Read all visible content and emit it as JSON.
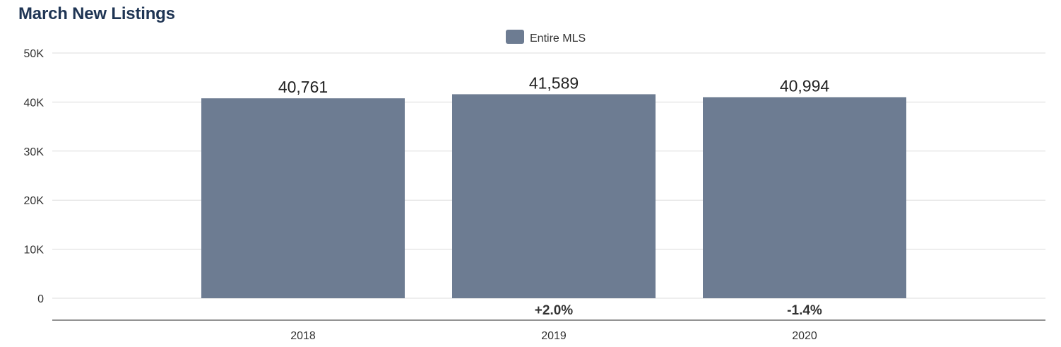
{
  "chart_data": {
    "type": "bar",
    "title": "March New Listings",
    "categories": [
      "2018",
      "2019",
      "2020"
    ],
    "series": [
      {
        "name": "Entire MLS",
        "values": [
          40761,
          41589,
          40994
        ],
        "color": "#6d7c92"
      }
    ],
    "value_labels": [
      "40,761",
      "41,589",
      "40,994"
    ],
    "change_labels": [
      "",
      "+2.0%",
      "-1.4%"
    ],
    "ylim": [
      0,
      50000
    ],
    "yticks": [
      0,
      10000,
      20000,
      30000,
      40000,
      50000
    ],
    "ytick_labels": [
      "0",
      "10K",
      "20K",
      "30K",
      "40K",
      "50K"
    ],
    "xlabel": "",
    "ylabel": "",
    "grid": true,
    "legend": "top-center"
  }
}
